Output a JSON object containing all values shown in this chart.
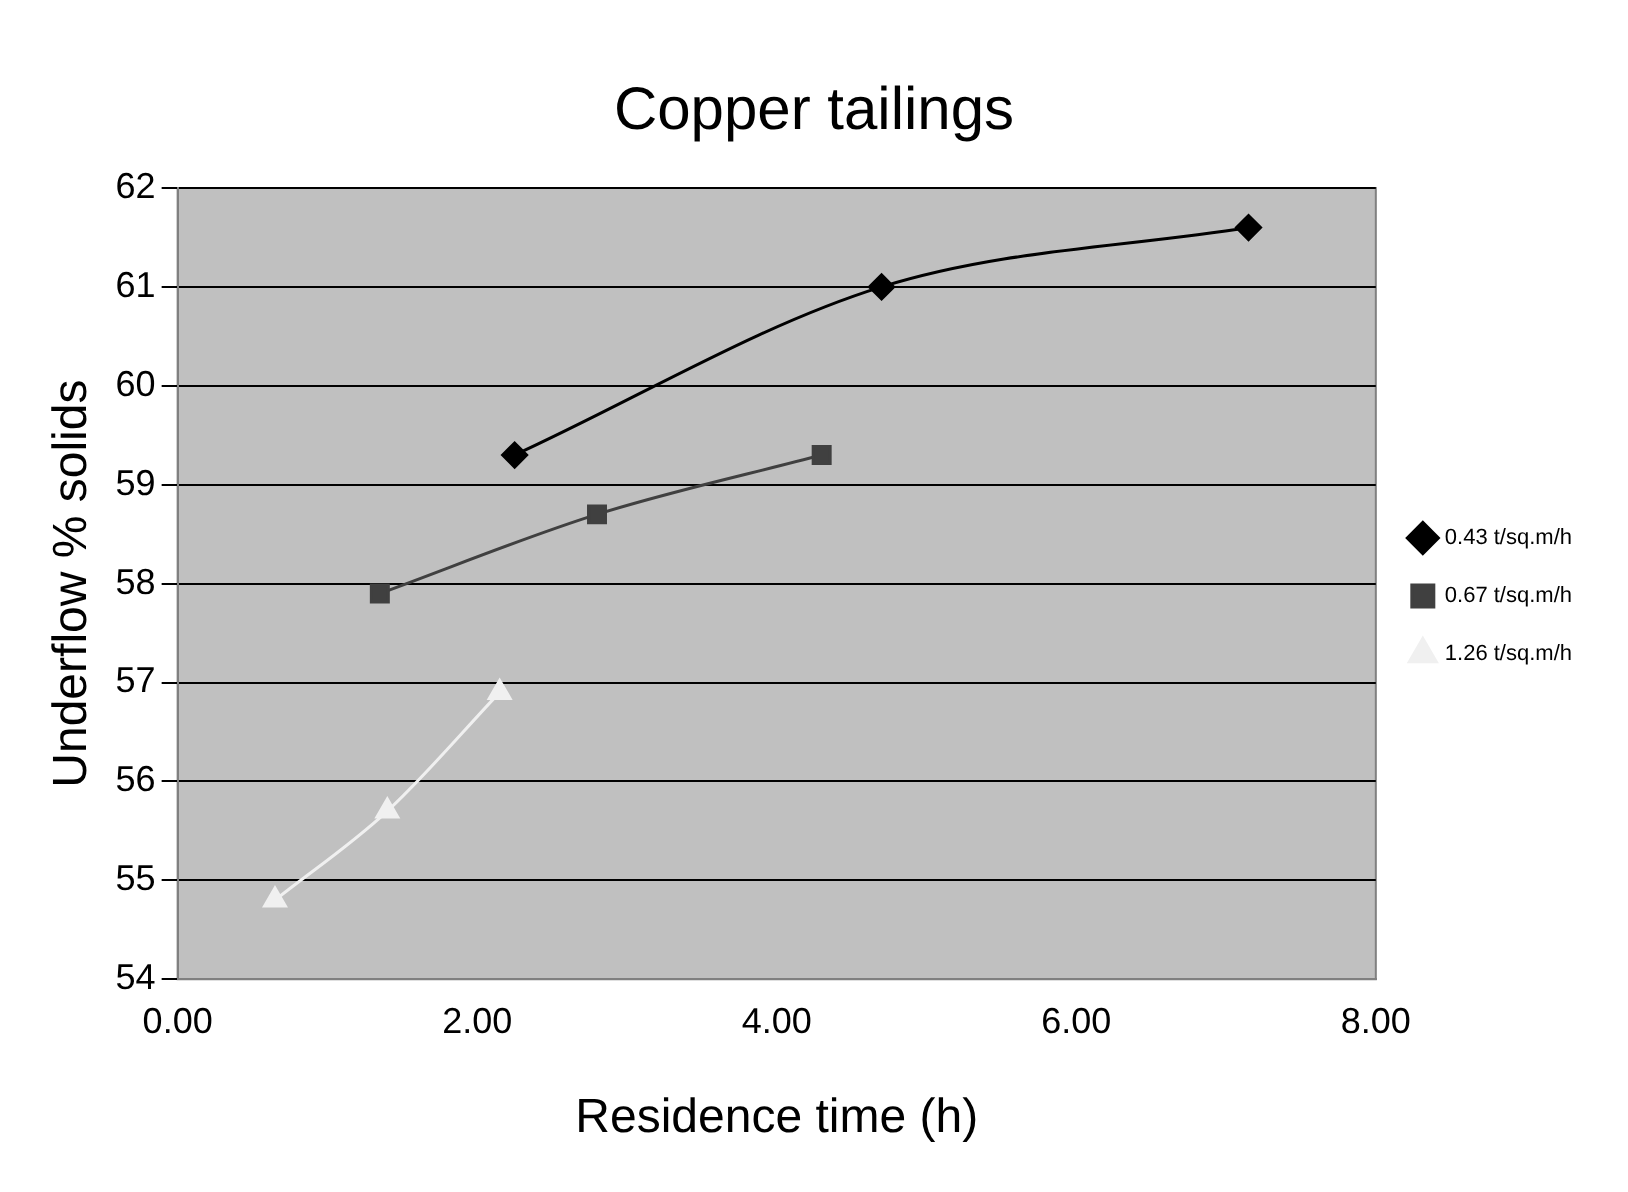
{
  "chart_data": {
    "type": "line",
    "title": "Copper tailings",
    "xlabel": "Residence time (h)",
    "ylabel": "Underflow % solids",
    "xlim": [
      0,
      8
    ],
    "xticks": [
      {
        "value": 0,
        "label": "0.00"
      },
      {
        "value": 2,
        "label": "2.00"
      },
      {
        "value": 4,
        "label": "4.00"
      },
      {
        "value": 6,
        "label": "6.00"
      },
      {
        "value": 8,
        "label": "8.00"
      }
    ],
    "ylim": [
      54,
      62
    ],
    "yticks": [
      54,
      55,
      56,
      57,
      58,
      59,
      60,
      61,
      62
    ],
    "grid": "y",
    "legend": "right",
    "series": [
      {
        "name": "0.43 t/sq.m/h",
        "color": "#000000",
        "marker": "diamond",
        "x": [
          2.25,
          4.7,
          7.15
        ],
        "values": [
          59.3,
          61.0,
          61.6
        ]
      },
      {
        "name": "0.67 t/sq.m/h",
        "color": "#404040",
        "marker": "square",
        "x": [
          1.35,
          2.8,
          4.3
        ],
        "values": [
          57.9,
          58.7,
          59.3
        ]
      },
      {
        "name": "1.26 t/sq.m/h",
        "color": "#f0f0f0",
        "marker": "triangle",
        "x": [
          0.65,
          1.4,
          2.15
        ],
        "values": [
          54.8,
          55.7,
          56.9
        ]
      }
    ]
  }
}
